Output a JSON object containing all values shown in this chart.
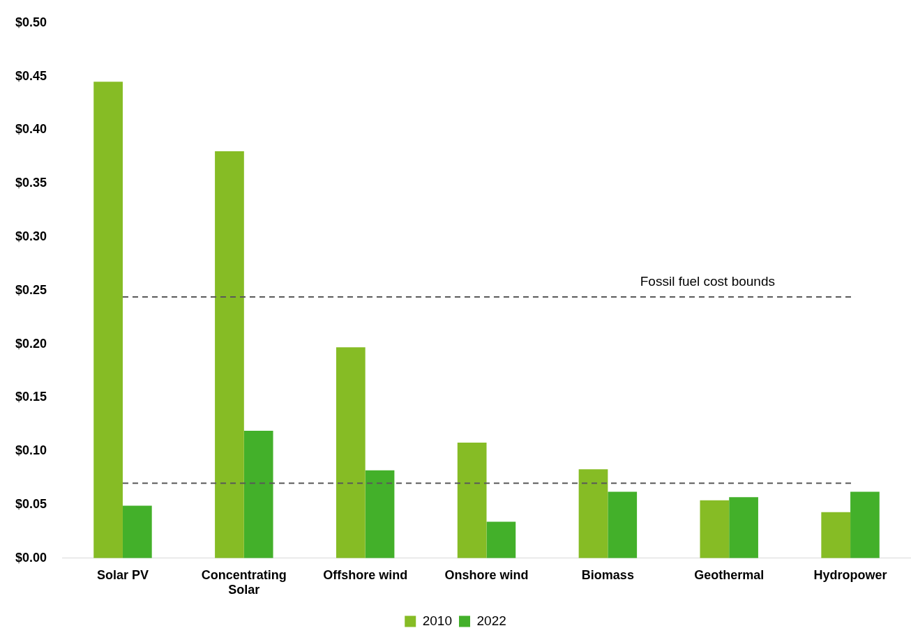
{
  "chart_data": {
    "type": "bar",
    "categories": [
      "Solar PV",
      "Concentrating Solar",
      "Offshore wind",
      "Onshore wind",
      "Biomass",
      "Geothermal",
      "Hydropower"
    ],
    "series": [
      {
        "name": "2010",
        "color": "#86bc25",
        "values": [
          0.445,
          0.38,
          0.197,
          0.108,
          0.083,
          0.054,
          0.043
        ]
      },
      {
        "name": "2022",
        "color": "#43b02a",
        "values": [
          0.049,
          0.119,
          0.082,
          0.034,
          0.062,
          0.057,
          0.062
        ]
      }
    ],
    "ylim": [
      0,
      0.5
    ],
    "yticks": [
      {
        "value": 0,
        "label": "$0.00"
      },
      {
        "value": 0.05,
        "label": "$0.05"
      },
      {
        "value": 0.1,
        "label": "$0.10"
      },
      {
        "value": 0.15,
        "label": "$0.15"
      },
      {
        "value": 0.2,
        "label": "$0.20"
      },
      {
        "value": 0.25,
        "label": "$0.25"
      },
      {
        "value": 0.3,
        "label": "$0.30"
      },
      {
        "value": 0.35,
        "label": "$0.35"
      },
      {
        "value": 0.4,
        "label": "$0.40"
      },
      {
        "value": 0.45,
        "label": "$0.45"
      },
      {
        "value": 0.5,
        "label": "$0.50"
      }
    ],
    "ref_lines": [
      {
        "axis": "y",
        "value": 0.244,
        "label": "Fossil fuel cost bounds",
        "color": "#595959",
        "line_style": "dashed"
      },
      {
        "axis": "y",
        "value": 0.07,
        "color": "#595959",
        "line_style": "dashed"
      }
    ],
    "grid": false,
    "legend": "bottom"
  }
}
